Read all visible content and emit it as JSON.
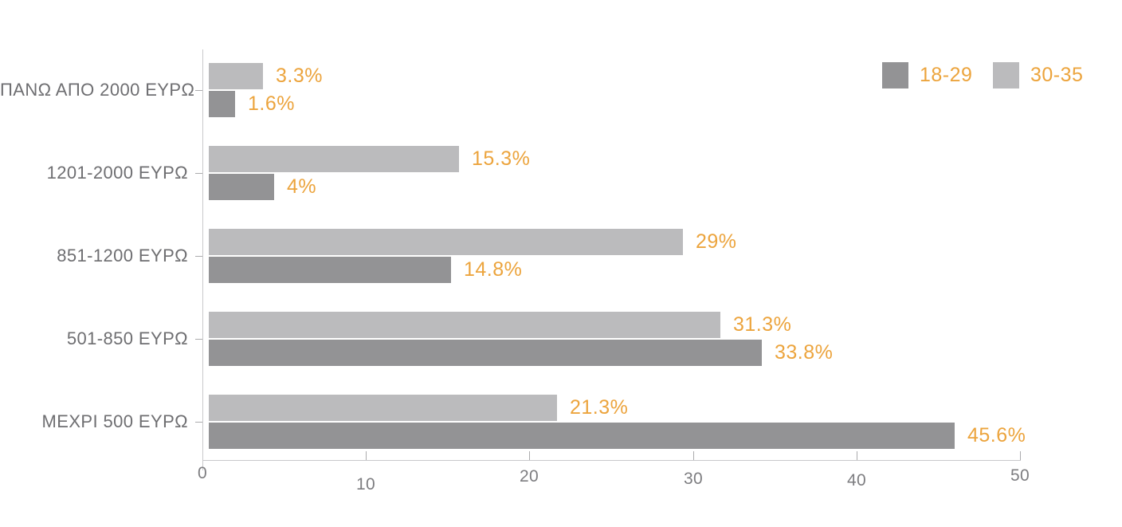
{
  "page": {
    "background_color": "#ffffff"
  },
  "chart_data": {
    "type": "bar",
    "orientation": "horizontal",
    "title": "",
    "categories": [
      "ΠΑΝΩ ΑΠΟ 2000 ΕΥΡΩ",
      "1201-2000 ΕΥΡΩ",
      "851-1200 ΕΥΡΩ",
      "501-850 ΕΥΡΩ",
      "ΜΕΧΡΙ 500 ΕΥΡΩ"
    ],
    "series": [
      {
        "name": "18-29",
        "color": "#939395",
        "values": [
          1.6,
          4,
          14.8,
          33.8,
          45.6
        ],
        "labels": [
          "1.6%",
          "4%",
          "14.8%",
          "33.8%",
          "45.6%"
        ]
      },
      {
        "name": "30-35",
        "color": "#bbbbbd",
        "values": [
          3.3,
          15.3,
          29,
          31.3,
          21.3
        ],
        "labels": [
          "3.3%",
          "15.3%",
          "29%",
          "31.3%",
          "21.3%"
        ]
      }
    ],
    "group_order_top_to_bottom": [
      "30-35",
      "18-29"
    ],
    "x_axis": {
      "min": 0,
      "max": 50,
      "ticks": [
        0,
        10,
        20,
        30,
        40,
        50
      ],
      "tick_labels": [
        "0",
        "10",
        "20",
        "30",
        "40",
        "50"
      ]
    },
    "value_label_color": "#eca43d",
    "axis_line_color": "#c9c9cb",
    "tick_mark_color": "#ababad",
    "category_label_color": "#6e6e71",
    "tick_label_color": "#7d7d80",
    "legend_position": "top-right",
    "grid": false
  }
}
